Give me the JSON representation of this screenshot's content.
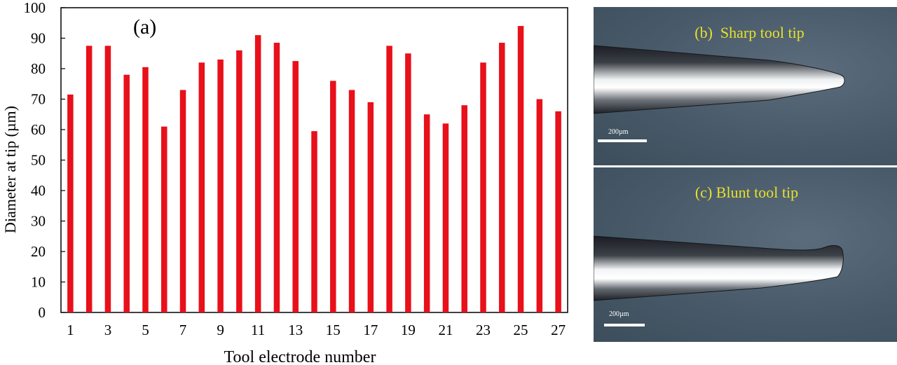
{
  "chart_data": {
    "type": "bar",
    "panel_label": "(a)",
    "xlabel": "Tool electrode number",
    "ylabel": "Diameter at tip (µm)",
    "ylim": [
      0,
      100
    ],
    "yticks": [
      0,
      10,
      20,
      30,
      40,
      50,
      60,
      70,
      80,
      90,
      100
    ],
    "x_tick_labels": [
      "1",
      "3",
      "5",
      "7",
      "9",
      "11",
      "13",
      "15",
      "17",
      "19",
      "21",
      "23",
      "25",
      "27"
    ],
    "categories": [
      1,
      2,
      3,
      4,
      5,
      6,
      7,
      8,
      9,
      10,
      11,
      12,
      13,
      14,
      15,
      16,
      17,
      18,
      19,
      20,
      21,
      22,
      23,
      24,
      25,
      26,
      27
    ],
    "values": [
      71.5,
      87.5,
      87.5,
      78,
      80.5,
      61,
      73,
      82,
      83,
      86,
      91,
      88.5,
      82.5,
      59.5,
      76,
      73,
      69,
      87.5,
      85,
      65,
      62,
      68,
      82,
      88.5,
      94,
      70,
      66
    ],
    "bar_color": "#e8101a",
    "grid": false
  },
  "photos": {
    "b": {
      "label": "(b)  Sharp tool tip",
      "scale": "200µm"
    },
    "c": {
      "label": "(c) Blunt tool tip",
      "scale": "200µm"
    }
  },
  "colors": {
    "label": "#e8e02a",
    "background": "#485a69"
  }
}
